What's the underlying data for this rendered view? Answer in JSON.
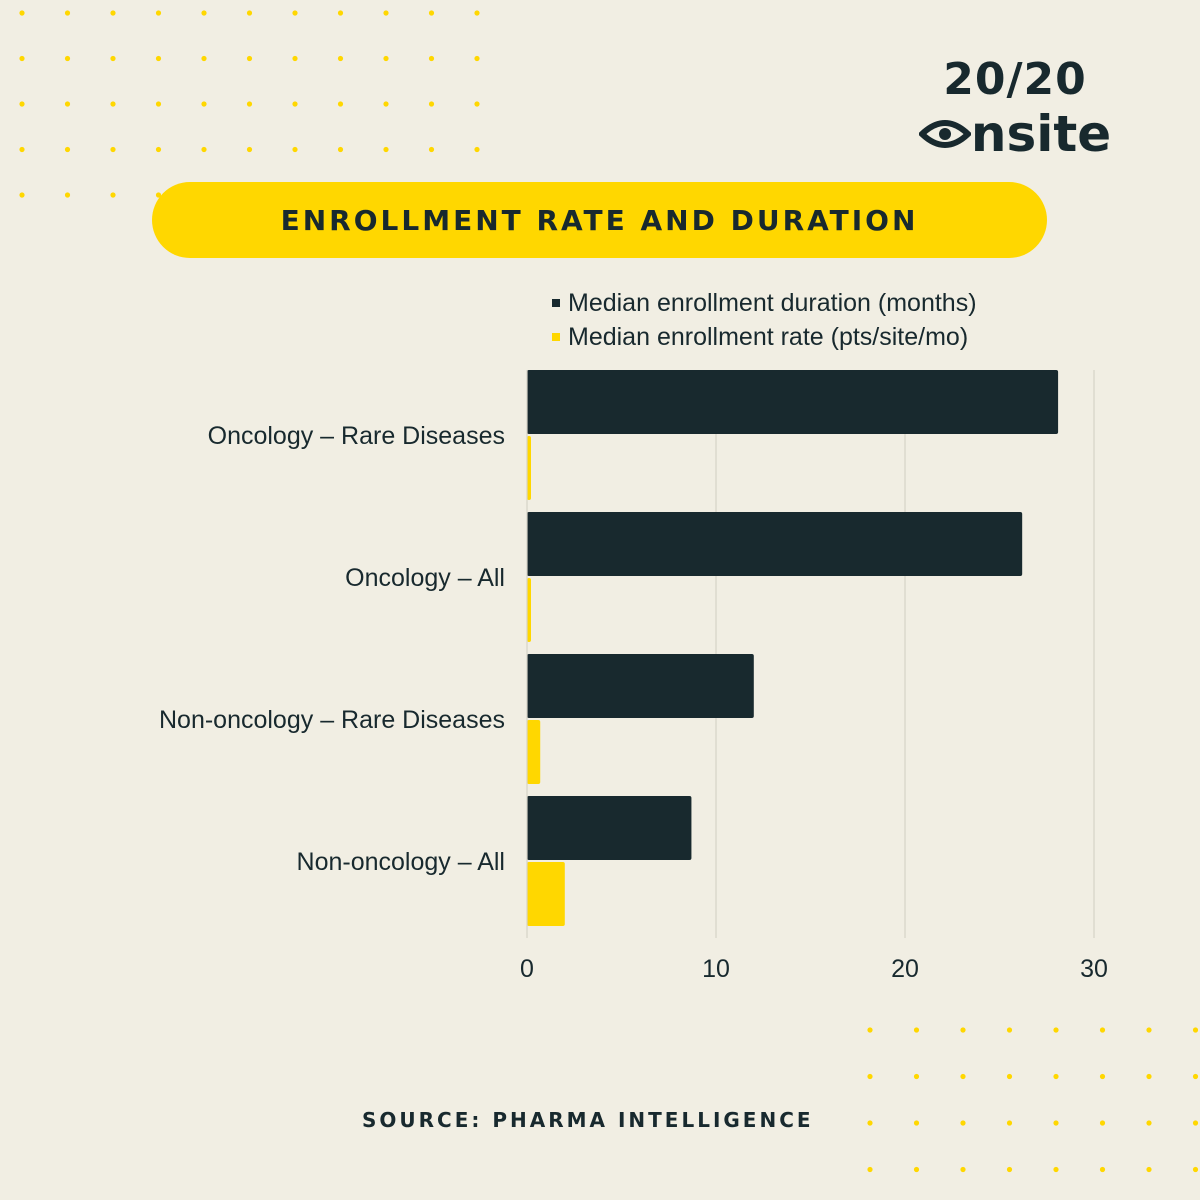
{
  "logo": {
    "line1": "20/20",
    "line2": "nsite"
  },
  "title": "ENROLLMENT RATE AND DURATION",
  "source": "SOURCE: PHARMA INTELLIGENCE",
  "colors": {
    "background": "#f1eee3",
    "accent": "#ffd700",
    "dark": "#18292e",
    "grid": "#d6d3c8"
  },
  "chart_data": {
    "type": "bar",
    "orientation": "horizontal",
    "categories": [
      "Oncology – Rare Diseases",
      "Oncology – All",
      "Non-oncology – Rare Diseases",
      "Non-oncology – All"
    ],
    "series": [
      {
        "name": "Median enrollment duration (months)",
        "color": "#18292e",
        "values": [
          28.1,
          26.2,
          12.0,
          8.7
        ]
      },
      {
        "name": "Median enrollment rate (pts/site/mo)",
        "color": "#ffd700",
        "values": [
          0.2,
          0.2,
          0.7,
          2.0
        ]
      }
    ],
    "xlim": [
      0,
      30
    ],
    "xticks": [
      0,
      10,
      20,
      30
    ],
    "grid": true,
    "legend_position": "top-right"
  }
}
